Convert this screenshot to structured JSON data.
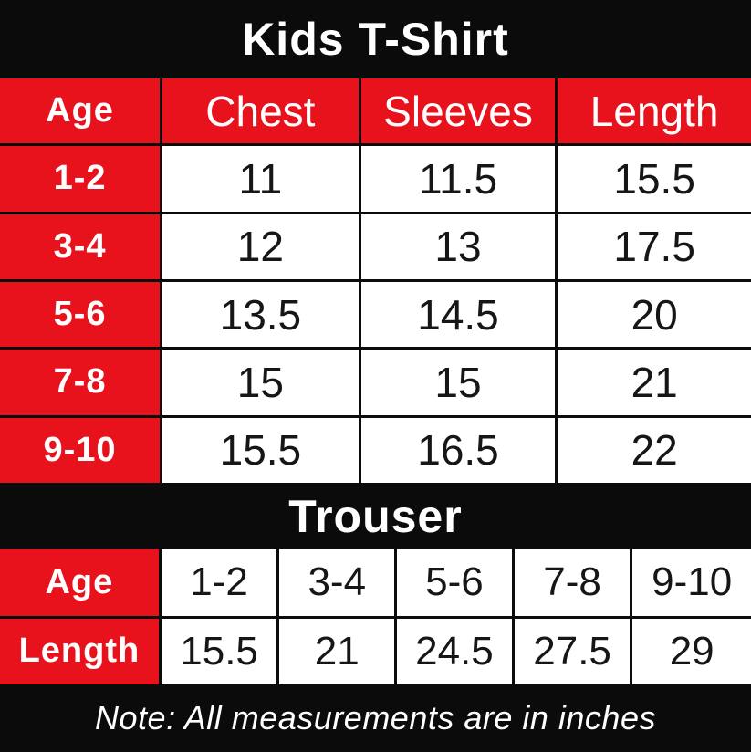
{
  "colors": {
    "background": "#0b0b0b",
    "accent_red": "#e8121c",
    "cell_white": "#ffffff",
    "text_dark": "#161616",
    "text_light": "#ffffff"
  },
  "tshirt": {
    "title": "Kids T-Shirt",
    "header": {
      "age": "Age",
      "chest": "Chest",
      "sleeves": "Sleeves",
      "length": "Length"
    },
    "rows": [
      {
        "age": "1-2",
        "chest": "11",
        "sleeves": "11.5",
        "length": "15.5"
      },
      {
        "age": "3-4",
        "chest": "12",
        "sleeves": "13",
        "length": "17.5"
      },
      {
        "age": "5-6",
        "chest": "13.5",
        "sleeves": "14.5",
        "length": "20"
      },
      {
        "age": "7-8",
        "chest": "15",
        "sleeves": "15",
        "length": "21"
      },
      {
        "age": "9-10",
        "chest": "15.5",
        "sleeves": "16.5",
        "length": "22"
      }
    ]
  },
  "trouser": {
    "title": "Trouser",
    "age_label": "Age",
    "length_label": "Length",
    "ages": [
      "1-2",
      "3-4",
      "5-6",
      "7-8",
      "9-10"
    ],
    "lengths": [
      "15.5",
      "21",
      "24.5",
      "27.5",
      "29"
    ]
  },
  "note": {
    "text": "Note: All measurements are in inches"
  },
  "chart_data": [
    {
      "type": "table",
      "title": "Kids T-Shirt",
      "columns": [
        "Age",
        "Chest",
        "Sleeves",
        "Length"
      ],
      "rows": [
        [
          "1-2",
          11,
          11.5,
          15.5
        ],
        [
          "3-4",
          12,
          13,
          17.5
        ],
        [
          "5-6",
          13.5,
          14.5,
          20
        ],
        [
          "7-8",
          15,
          15,
          21
        ],
        [
          "9-10",
          15.5,
          16.5,
          22
        ]
      ],
      "units": "inches"
    },
    {
      "type": "table",
      "title": "Trouser",
      "columns": [
        "Age",
        "1-2",
        "3-4",
        "5-6",
        "7-8",
        "9-10"
      ],
      "rows": [
        [
          "Length",
          15.5,
          21,
          24.5,
          27.5,
          29
        ]
      ],
      "units": "inches"
    }
  ]
}
